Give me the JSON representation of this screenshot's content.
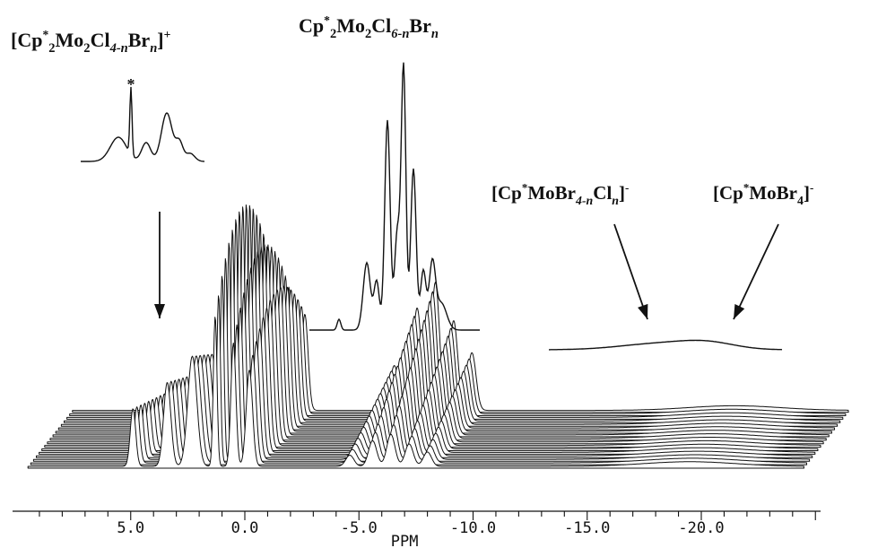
{
  "chart_data": {
    "type": "line",
    "style": "stacked-waterfall NMR spectra",
    "xlabel": "PPM",
    "x_direction": "reversed",
    "xlim": [
      9.5,
      -24.5
    ],
    "ticks": [
      {
        "value": 5.0,
        "label": "5.0"
      },
      {
        "value": 0.0,
        "label": "0.0"
      },
      {
        "value": -5.0,
        "label": "-5.0"
      },
      {
        "value": -10.0,
        "label": "-10.0"
      },
      {
        "value": -15.0,
        "label": "-15.0"
      },
      {
        "value": -20.0,
        "label": "-20.0"
      }
    ],
    "minor_tick_step": 1.0,
    "n_traces": 17,
    "peak_groups": [
      {
        "name": "cation",
        "positions_ppm": [
          4.9,
          3.4,
          2.3
        ],
        "intensity": 0.45
      },
      {
        "name": "central",
        "positions_ppm": [
          1.3,
          0.5,
          -0.2
        ],
        "intensity": 1.0
      },
      {
        "name": "neutral",
        "positions_ppm": [
          -4.6,
          -5.6,
          -6.4,
          -7.2,
          -8.0
        ],
        "intensity": 0.55
      },
      {
        "name": "anion",
        "positions_ppm": [
          -18.4,
          -20.6
        ],
        "intensity": 0.01
      }
    ],
    "annotations": [
      {
        "id": "cation",
        "parts": [
          [
            "[Cp",
            "n"
          ],
          [
            "*",
            "sup"
          ],
          [
            "2",
            "sub"
          ],
          [
            "Mo",
            "n"
          ],
          [
            "2",
            "sub"
          ],
          [
            "Cl",
            "n"
          ],
          [
            "4-n",
            "subi"
          ],
          [
            "Br",
            "n"
          ],
          [
            "n",
            "subi"
          ],
          [
            "]",
            "n"
          ],
          [
            "+",
            "sup"
          ]
        ]
      },
      {
        "id": "neutral",
        "parts": [
          [
            "Cp",
            "n"
          ],
          [
            "*",
            "sup"
          ],
          [
            "2",
            "sub"
          ],
          [
            "Mo",
            "n"
          ],
          [
            "2",
            "sub"
          ],
          [
            "Cl",
            "n"
          ],
          [
            "6-n",
            "subi"
          ],
          [
            "Br",
            "n"
          ],
          [
            "n",
            "subi"
          ]
        ]
      },
      {
        "id": "anion_mixed",
        "parts": [
          [
            "[Cp",
            "n"
          ],
          [
            "*",
            "sup"
          ],
          [
            "MoBr",
            "n"
          ],
          [
            "4-n",
            "subi"
          ],
          [
            "Cl",
            "n"
          ],
          [
            "n",
            "subi"
          ],
          [
            "]",
            "n"
          ],
          [
            "-",
            "sup"
          ]
        ]
      },
      {
        "id": "anion_br",
        "parts": [
          [
            "[Cp",
            "n"
          ],
          [
            "*",
            "sup"
          ],
          [
            "MoBr",
            "n"
          ],
          [
            "4",
            "sub"
          ],
          [
            "]",
            "n"
          ],
          [
            "-",
            "sup"
          ]
        ]
      },
      {
        "id": "asterisk",
        "parts": [
          [
            "*",
            "n"
          ]
        ]
      }
    ],
    "insets": [
      {
        "id": "cation-inset",
        "annotation": "cation"
      },
      {
        "id": "neutral-inset",
        "annotation": "neutral"
      },
      {
        "id": "anion-inset",
        "annotation": "anion_mixed"
      }
    ]
  }
}
